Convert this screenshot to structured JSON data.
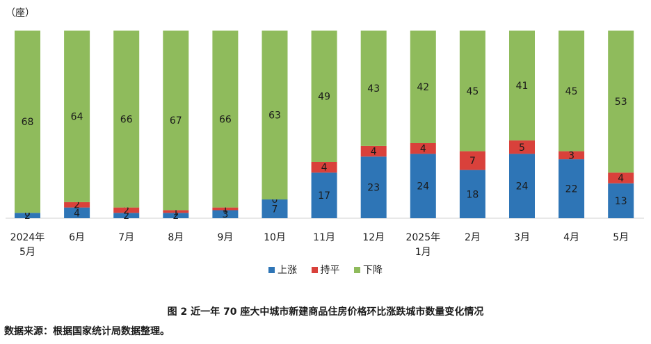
{
  "chart_data": {
    "type": "bar",
    "stacked": true,
    "unit_label": "（座）",
    "categories": [
      [
        "2024年",
        "5月"
      ],
      [
        "6月"
      ],
      [
        "7月"
      ],
      [
        "8月"
      ],
      [
        "9月"
      ],
      [
        "10月"
      ],
      [
        "11月"
      ],
      [
        "12月"
      ],
      [
        "2025年",
        "1月"
      ],
      [
        "2月"
      ],
      [
        "3月"
      ],
      [
        "4月"
      ],
      [
        "5月"
      ]
    ],
    "series": [
      {
        "name": "上涨",
        "color": "#2e75b6",
        "values": [
          2,
          4,
          2,
          2,
          3,
          7,
          17,
          23,
          24,
          18,
          24,
          22,
          13
        ]
      },
      {
        "name": "持平",
        "color": "#d9413b",
        "values": [
          0,
          2,
          2,
          1,
          1,
          0,
          4,
          4,
          4,
          7,
          5,
          3,
          4
        ]
      },
      {
        "name": "下降",
        "color": "#8fbb5c",
        "values": [
          68,
          64,
          66,
          67,
          66,
          63,
          49,
          43,
          42,
          45,
          41,
          45,
          53
        ]
      }
    ],
    "ylim": [
      0,
      70
    ],
    "legend_position": "bottom"
  },
  "caption": "图 2 近一年 70 座大中城市新建商品住房价格环比涨跌城市数量变化情况",
  "source": "数据来源：根据国家统计局数据整理。"
}
